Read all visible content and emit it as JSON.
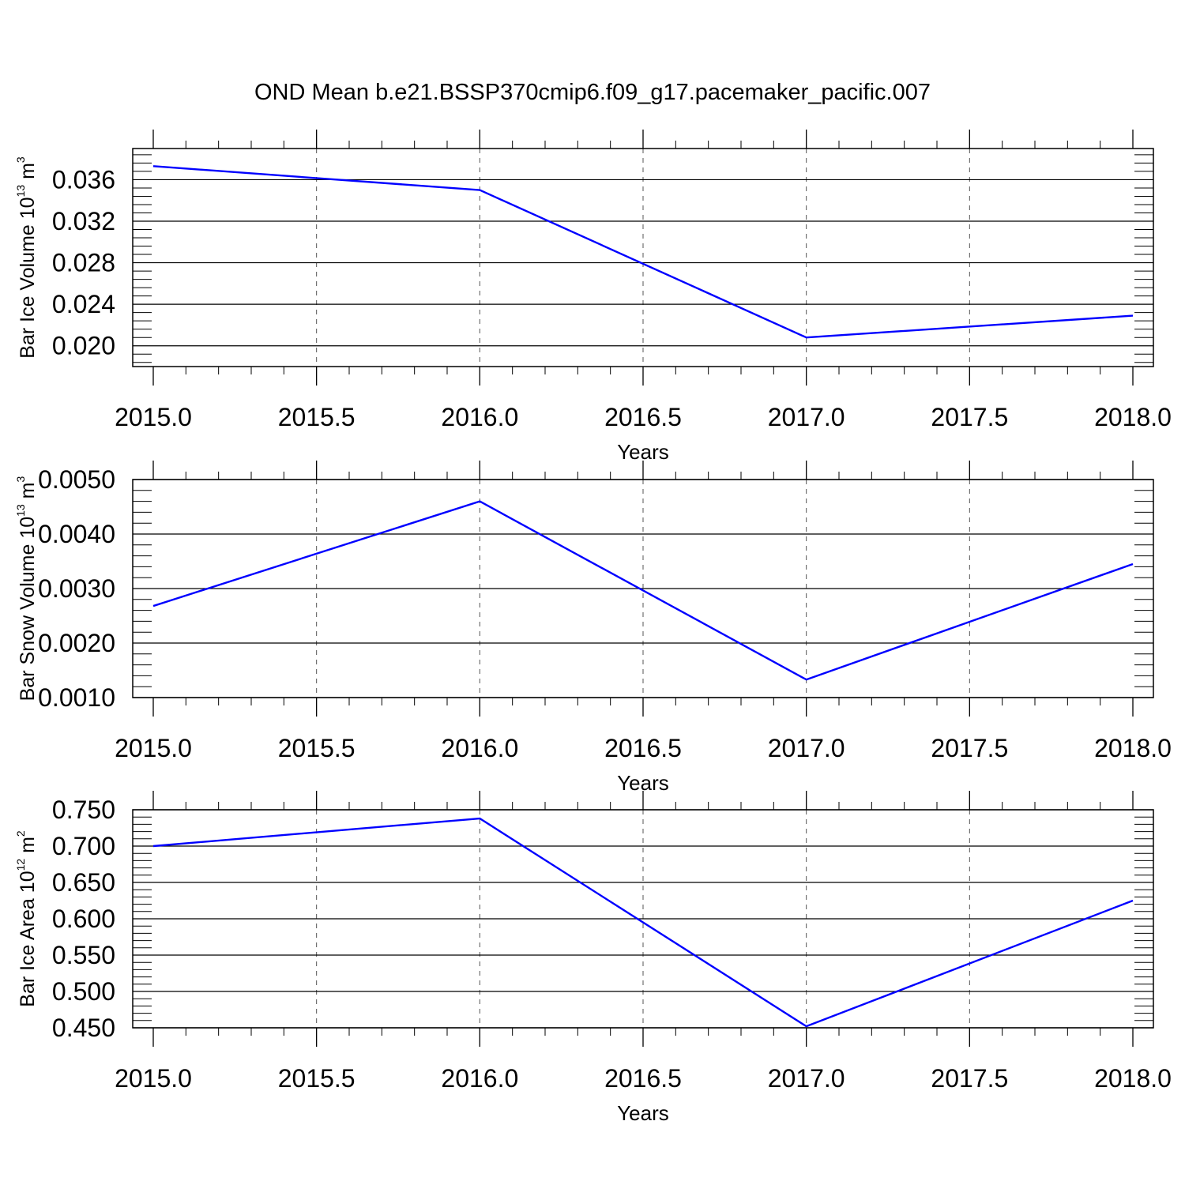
{
  "title": "OND Mean b.e21.BSSP370cmip6.f09_g17.pacemaker_pacific.007",
  "chart_data": [
    {
      "type": "line",
      "xlabel": "Years",
      "ylabel": {
        "text": "Bar Ice Volume 10",
        "exp": "13",
        "unit_text": " m",
        "unit_exp": "3"
      },
      "xlim": [
        2015.0,
        2018.0
      ],
      "ylim": [
        0.018,
        0.039
      ],
      "xticks": [
        "2015.0",
        "2015.5",
        "2016.0",
        "2016.5",
        "2017.0",
        "2017.5",
        "2018.0"
      ],
      "yticks": [
        "0.020",
        "0.024",
        "0.028",
        "0.032",
        "0.036"
      ],
      "grid": "x-dashed",
      "series": [
        {
          "color": "#0000ff",
          "x": [
            2015,
            2016,
            2017,
            2018
          ],
          "y": [
            0.0373,
            0.035,
            0.0208,
            0.0229
          ]
        }
      ]
    },
    {
      "type": "line",
      "xlabel": "Years",
      "ylabel": {
        "text": "Bar Snow Volume 10",
        "exp": "13",
        "unit_text": " m",
        "unit_exp": "3"
      },
      "xlim": [
        2015.0,
        2018.0
      ],
      "ylim": [
        0.001,
        0.005
      ],
      "xticks": [
        "2015.0",
        "2015.5",
        "2016.0",
        "2016.5",
        "2017.0",
        "2017.5",
        "2018.0"
      ],
      "yticks": [
        "0.0010",
        "0.0020",
        "0.0030",
        "0.0040",
        "0.0050"
      ],
      "grid": "x-dashed",
      "series": [
        {
          "color": "#0000ff",
          "x": [
            2015,
            2016,
            2017,
            2018
          ],
          "y": [
            0.00268,
            0.0046,
            0.00133,
            0.00345
          ]
        }
      ]
    },
    {
      "type": "line",
      "xlabel": "Years",
      "ylabel": {
        "text": "Bar Ice Area 10",
        "exp": "12",
        "unit_text": " m",
        "unit_exp": "2"
      },
      "xlim": [
        2015.0,
        2018.0
      ],
      "ylim": [
        0.45,
        0.75
      ],
      "xticks": [
        "2015.0",
        "2015.5",
        "2016.0",
        "2016.5",
        "2017.0",
        "2017.5",
        "2018.0"
      ],
      "yticks": [
        "0.450",
        "0.500",
        "0.550",
        "0.600",
        "0.650",
        "0.700",
        "0.750"
      ],
      "grid": "x-dashed",
      "series": [
        {
          "color": "#0000ff",
          "x": [
            2015,
            2016,
            2017,
            2018
          ],
          "y": [
            0.7,
            0.738,
            0.452,
            0.625
          ]
        }
      ]
    }
  ]
}
